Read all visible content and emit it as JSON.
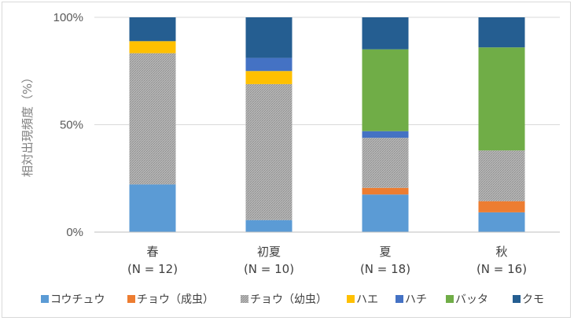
{
  "chart_data": {
    "type": "bar",
    "stacked": true,
    "ylabel": "相対出現頻度（%）",
    "ylim": [
      0,
      100
    ],
    "yticks": [
      "0%",
      "50%",
      "100%"
    ],
    "categories": [
      {
        "name": "春",
        "n": "(N = 12)"
      },
      {
        "name": "初夏",
        "n": "(N = 10)"
      },
      {
        "name": "夏",
        "n": "(N = 18)"
      },
      {
        "name": "秋",
        "n": "(N = 16)"
      }
    ],
    "series": [
      {
        "name": "コウチュウ",
        "color": "#5b9bd5",
        "values": [
          22.2,
          5.6,
          17.5,
          9.2
        ]
      },
      {
        "name": "チョウ（成虫）",
        "color": "#ed7d31",
        "values": [
          0,
          0,
          3.1,
          5.2
        ]
      },
      {
        "name": "チョウ（幼虫）",
        "color": "#a5a5a5",
        "pattern": true,
        "values": [
          61.1,
          63.3,
          23.3,
          23.6
        ]
      },
      {
        "name": "ハエ",
        "color": "#ffc000",
        "values": [
          5.6,
          6.1,
          0,
          0
        ]
      },
      {
        "name": "ハチ",
        "color": "#4472c4",
        "values": [
          0,
          6.1,
          3.1,
          0
        ]
      },
      {
        "name": "バッタ",
        "color": "#70ad47",
        "values": [
          0,
          0,
          38.1,
          48.0
        ]
      },
      {
        "name": "クモ",
        "color": "#255e91",
        "values": [
          11.1,
          18.9,
          14.9,
          14.0
        ]
      }
    ],
    "grid": true,
    "legend": "bottom"
  }
}
